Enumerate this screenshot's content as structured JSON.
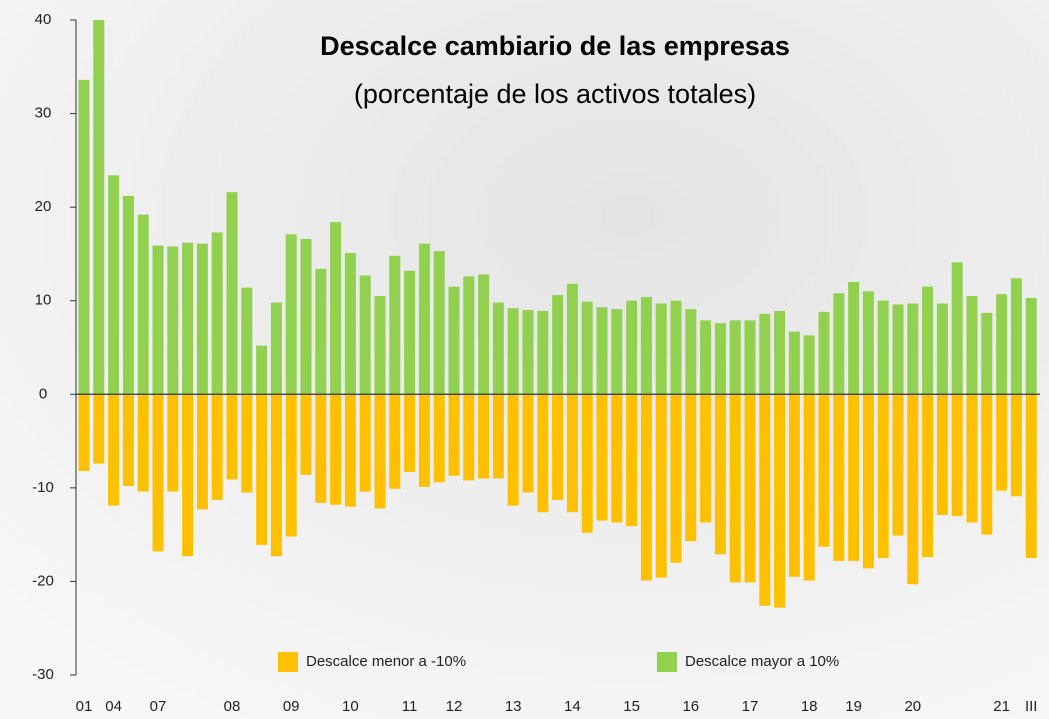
{
  "chart_data": {
    "type": "bar",
    "title": "Descalce cambiario de las empresas",
    "subtitle": "(porcentaje de los activos totales)",
    "categories": [
      "01",
      null,
      "04",
      null,
      null,
      "07",
      null,
      null,
      null,
      null,
      "08",
      null,
      null,
      null,
      "09",
      null,
      null,
      null,
      "10",
      null,
      null,
      null,
      "11",
      null,
      null,
      "12",
      null,
      null,
      null,
      "13",
      null,
      null,
      null,
      "14",
      null,
      null,
      null,
      "15",
      null,
      null,
      null,
      "16",
      null,
      null,
      null,
      "17",
      null,
      null,
      null,
      "18",
      null,
      null,
      "19",
      null,
      null,
      null,
      "20",
      null,
      null,
      null,
      null,
      null,
      "21",
      null,
      "III"
    ],
    "series": [
      {
        "name": "Descalce menor a -10%",
        "color": "#ffc000",
        "values": [
          -8.2,
          -7.4,
          -11.9,
          -9.8,
          -10.4,
          -16.8,
          -10.4,
          -17.3,
          -12.3,
          -11.3,
          -9.1,
          -10.5,
          -16.1,
          -17.3,
          -15.2,
          -8.6,
          -11.6,
          -11.8,
          -12.0,
          -10.4,
          -12.2,
          -10.1,
          -8.3,
          -9.9,
          -9.4,
          -8.7,
          -9.2,
          -9.0,
          -9.0,
          -11.9,
          -10.5,
          -12.6,
          -11.3,
          -12.6,
          -14.8,
          -13.5,
          -13.7,
          -14.1,
          -19.9,
          -19.6,
          -18.0,
          -15.7,
          -13.7,
          -17.1,
          -20.1,
          -20.1,
          -22.6,
          -22.8,
          -19.5,
          -19.9,
          -16.3,
          -17.8,
          -17.8,
          -18.6,
          -17.5,
          -15.1,
          -20.3,
          -17.4,
          -12.9,
          -13.0,
          -13.7,
          -15.0,
          -10.3,
          -10.9,
          -17.5
        ]
      },
      {
        "name": "Descalce mayor a 10%",
        "color": "#92d050",
        "values": [
          33.6,
          40.0,
          23.4,
          21.2,
          19.2,
          15.9,
          15.8,
          16.2,
          16.1,
          17.3,
          21.6,
          11.4,
          5.2,
          9.8,
          17.1,
          16.6,
          13.4,
          18.4,
          15.1,
          12.7,
          10.5,
          14.8,
          13.2,
          16.1,
          15.3,
          11.5,
          12.6,
          12.8,
          9.8,
          9.2,
          9.0,
          8.9,
          10.6,
          11.8,
          9.9,
          9.3,
          9.1,
          10.0,
          10.4,
          9.7,
          10.0,
          9.1,
          7.9,
          7.6,
          7.9,
          7.9,
          8.6,
          8.9,
          6.7,
          6.3,
          8.8,
          10.8,
          12.0,
          11.0,
          10.0,
          9.6,
          9.7,
          11.5,
          9.7,
          14.1,
          10.5,
          8.7,
          10.7,
          12.4,
          10.3
        ]
      }
    ],
    "ylim": [
      -30,
      40
    ],
    "yticks": [
      -30,
      -20,
      -10,
      0,
      10,
      20,
      30,
      40
    ]
  }
}
